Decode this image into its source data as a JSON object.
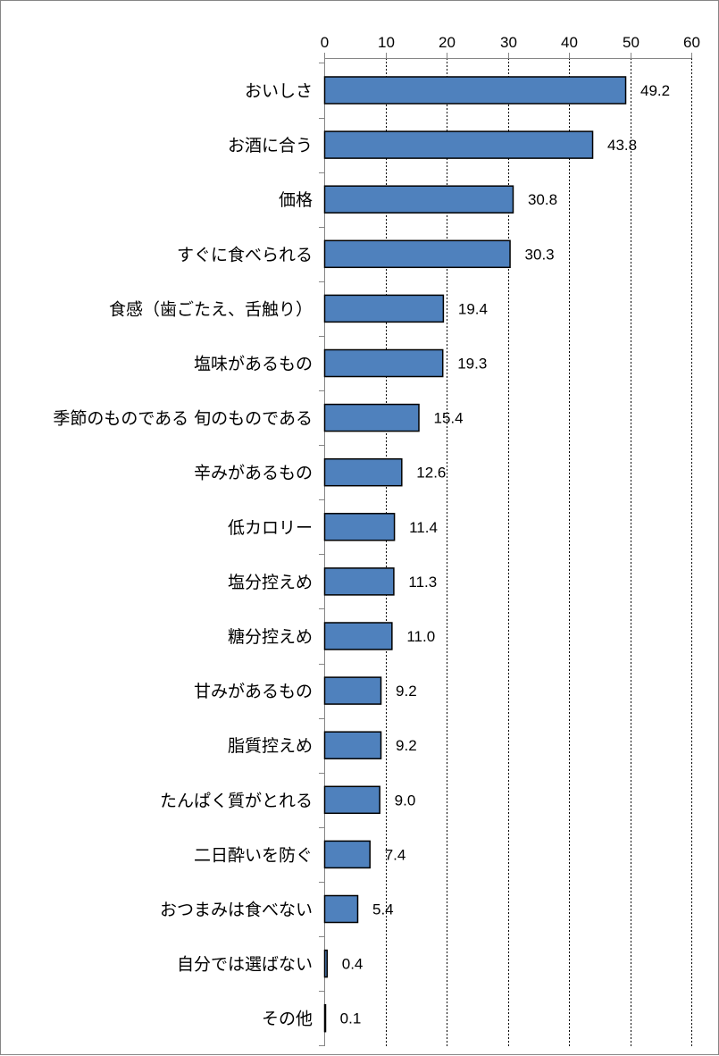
{
  "chart_data": {
    "type": "bar",
    "orientation": "horizontal",
    "title": "",
    "xlabel": "",
    "ylabel": "",
    "xlim": [
      0,
      60
    ],
    "x_ticks": [
      0,
      10,
      20,
      30,
      40,
      50,
      60
    ],
    "x_axis_position": "top",
    "grid": true,
    "grid_style": "dashed vertical",
    "legend": "none",
    "bar_color": "#4F81BD",
    "bar_border_color": "#000000",
    "categories": [
      "おいしさ",
      "お酒に合う",
      "価格",
      "すぐに食べられる",
      "食感（歯ごたえ、舌触り）",
      "塩味があるもの",
      "季節のものである 旬のものである",
      "辛みがあるもの",
      "低カロリー",
      "塩分控えめ",
      "糖分控えめ",
      "甘みがあるもの",
      "脂質控えめ",
      "たんぱく質がとれる",
      "二日酔いを防ぐ",
      "おつまみは食べない",
      "自分では選ばない",
      "その他"
    ],
    "values": [
      49.2,
      43.8,
      30.8,
      30.3,
      19.4,
      19.3,
      15.4,
      12.6,
      11.4,
      11.3,
      11.0,
      9.2,
      9.2,
      9.0,
      7.4,
      5.4,
      0.4,
      0.1
    ],
    "value_labels": [
      "49.2",
      "43.8",
      "30.8",
      "30.3",
      "19.4",
      "19.3",
      "15.4",
      "12.6",
      "11.4",
      "11.3",
      "11.0",
      "9.2",
      "9.2",
      "9.0",
      "7.4",
      "5.4",
      "0.4",
      "0.1"
    ]
  }
}
